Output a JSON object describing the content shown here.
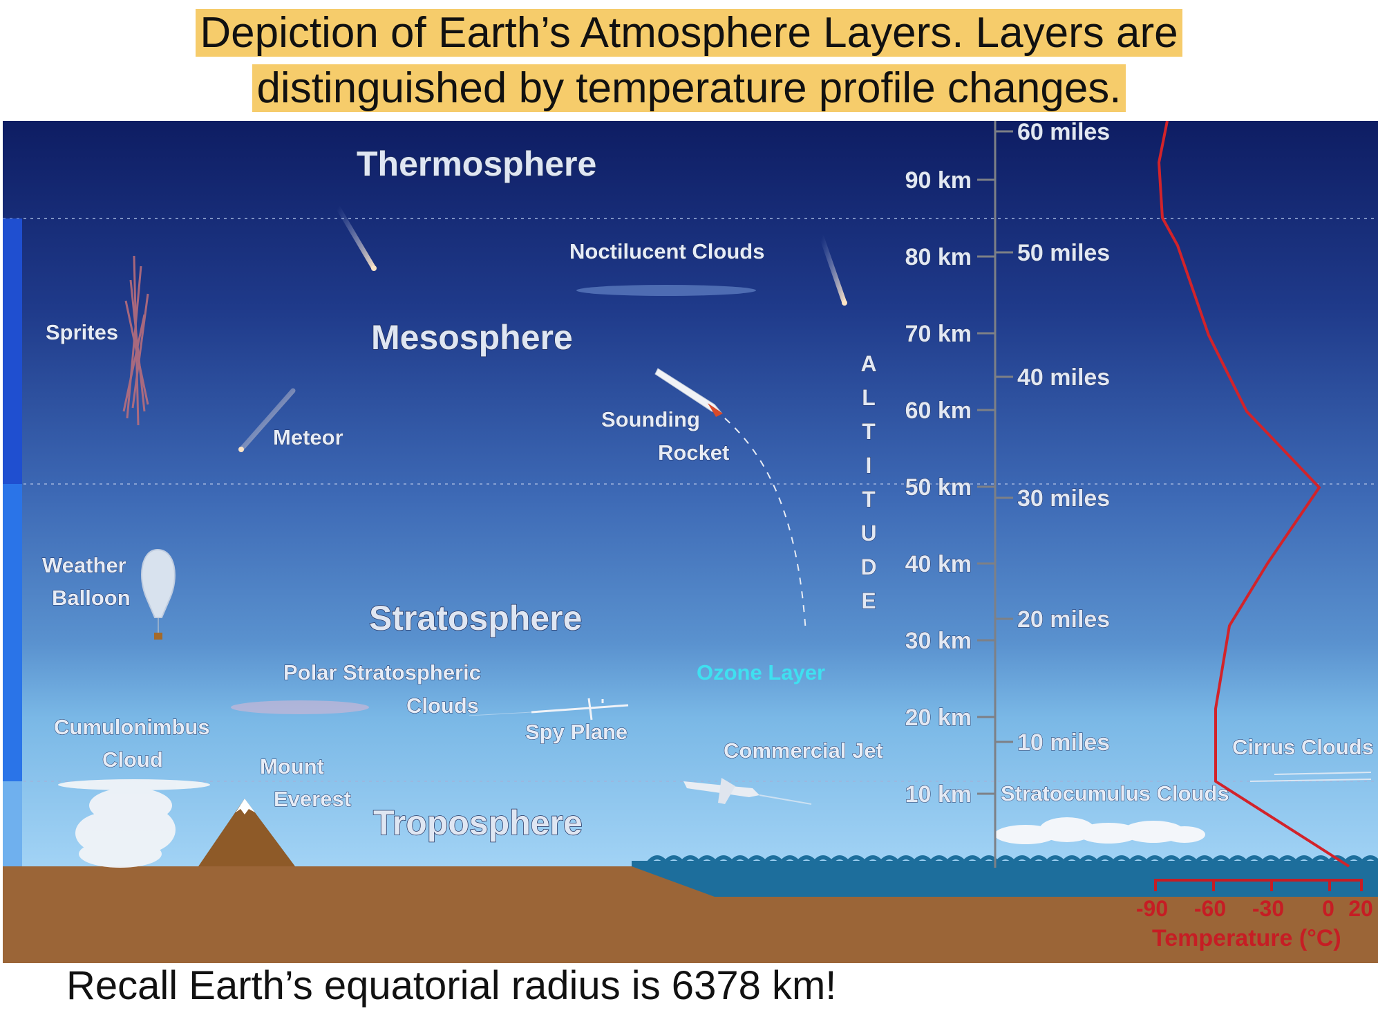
{
  "title": {
    "line1": "Depiction of Earth’s Atmosphere Layers.  Layers are",
    "line2": "distinguished by temperature profile changes."
  },
  "footer": "Recall Earth’s equatorial radius is 6378 km!",
  "layers": {
    "thermosphere": "Thermosphere",
    "mesosphere": "Mesosphere",
    "stratosphere": "Stratosphere",
    "troposphere": "Troposphere"
  },
  "labels": {
    "noctilucent": "Noctilucent Clouds",
    "sprites": "Sprites",
    "meteor": "Meteor",
    "sounding_1": "Sounding",
    "sounding_2": "Rocket",
    "weather_1": "Weather",
    "weather_2": "Balloon",
    "polar_1": "Polar Stratospheric",
    "polar_2": "Clouds",
    "ozone": "Ozone Layer",
    "spy_plane": "Spy Plane",
    "cumulonimbus_1": "Cumulonimbus",
    "cumulonimbus_2": "Cloud",
    "everest_1": "Mount",
    "everest_2": "Everest",
    "commercial_jet": "Commercial Jet",
    "stratocumulus": "Stratocumulus Clouds",
    "cirrus": "Cirrus Clouds"
  },
  "altitude_word": [
    "A",
    "L",
    "T",
    "I",
    "T",
    "U",
    "D",
    "E"
  ],
  "km_ticks": [
    "90 km",
    "80 km",
    "70 km",
    "60 km",
    "50 km",
    "40 km",
    "30 km",
    "20 km",
    "10 km"
  ],
  "mile_ticks": [
    "60 miles",
    "50 miles",
    "40 miles",
    "30 miles",
    "20 miles",
    "10 miles"
  ],
  "temperature": {
    "ticks": [
      "-90",
      "-60",
      "-30",
      "0",
      "20"
    ],
    "axis_label": "Temperature (°C)"
  },
  "colors": {
    "sky_top": "#0e1d63",
    "sky_bottom": "#9fd0f4",
    "ground": "#9b6537",
    "ocean": "#1d6e9c",
    "temperature_line": "#d2232a",
    "title_highlight": "#f6cc6b",
    "ozone": "#3fe0f0"
  }
}
